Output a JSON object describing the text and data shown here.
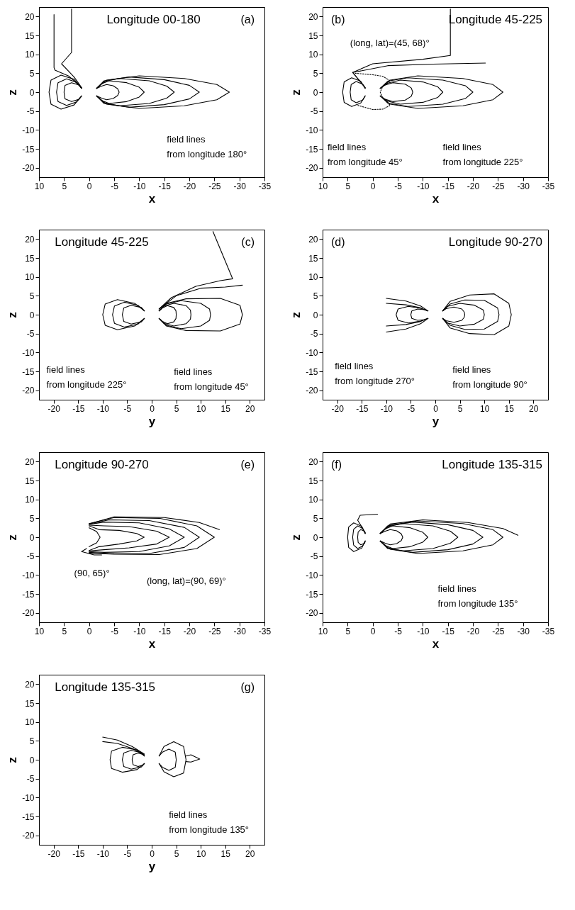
{
  "chart_data": [
    {
      "type": "line",
      "title": "Longitude 00-180",
      "subtitle": "(a)",
      "xlabel": "x",
      "ylabel": "z",
      "xlim": [
        10,
        -35
      ],
      "ylim": [
        -22.5,
        22.5
      ],
      "xticks": [
        10,
        5,
        0,
        -5,
        -10,
        -15,
        -20,
        -25,
        -30,
        -35
      ],
      "yticks": [
        -20,
        -15,
        -10,
        -5,
        0,
        5,
        10,
        15,
        20
      ],
      "annotations": [
        "field lines\nfrom longitude 180°"
      ],
      "series": [
        {
          "color": "#000000",
          "x": [
            1.5,
            3,
            5.5,
            3.5,
            3.5
          ],
          "values": [
            1.2,
            4,
            7.5,
            10.5,
            22
          ]
        },
        {
          "color": "#000000",
          "x": [
            1.5,
            4,
            6.8,
            7,
            7
          ],
          "values": [
            1.2,
            4.2,
            5.8,
            6.5,
            20.5
          ]
        },
        {
          "color": "#000000",
          "x": [
            1.5,
            2,
            3.5,
            4.8,
            5,
            4.8,
            3.5,
            2,
            1.5
          ],
          "values": [
            1,
            1.9,
            2.5,
            1.8,
            0,
            -1.8,
            -2.5,
            -1.9,
            -1
          ]
        },
        {
          "color": "#000000",
          "x": [
            1.5,
            2.5,
            4.5,
            6.2,
            6.5,
            6.2,
            4.5,
            2.5,
            1.5
          ],
          "values": [
            1,
            2.6,
            3.5,
            2.5,
            0,
            -2.5,
            -3.5,
            -2.6,
            -1
          ]
        },
        {
          "color": "#000000",
          "x": [
            1.5,
            3,
            5.6,
            7.6,
            8,
            7.6,
            5.6,
            3,
            1.5
          ],
          "values": [
            1,
            3.4,
            4.5,
            3.2,
            0,
            -3.2,
            -4.5,
            -3.4,
            -1
          ]
        },
        {
          "color": "#000000",
          "x": [
            -1.5,
            -2.5,
            -3.5,
            -4.8,
            -5.7,
            -6,
            -5.7,
            -4.8,
            -3.5,
            -2.5,
            -1.5
          ],
          "values": [
            1,
            1.6,
            2,
            1.7,
            0.9,
            0,
            -0.9,
            -1.7,
            -2,
            -1.6,
            -1
          ]
        },
        {
          "color": "#000000",
          "x": [
            -1.5,
            -2.5,
            -4,
            -7.5,
            -10,
            -11,
            -10,
            -7.5,
            -4,
            -2.5,
            -1.5
          ],
          "values": [
            1,
            2.2,
            3,
            2.5,
            1.3,
            0,
            -1.3,
            -2.5,
            -3,
            -2.2,
            -1
          ]
        },
        {
          "color": "#000000",
          "x": [
            -1.5,
            -3,
            -6,
            -12,
            -15.5,
            -17,
            -15.5,
            -12,
            -6,
            -3,
            -1.5
          ],
          "values": [
            1,
            2.8,
            3.6,
            3,
            1.6,
            0,
            -1.6,
            -3,
            -3.6,
            -2.8,
            -1
          ]
        },
        {
          "color": "#000000",
          "x": [
            -1.5,
            -3,
            -8,
            -15,
            -20,
            -22,
            -20,
            -15,
            -8,
            -3,
            -1.5
          ],
          "values": [
            1,
            3,
            4,
            3.3,
            1.8,
            0,
            -1.8,
            -3.3,
            -4,
            -3,
            -1
          ]
        },
        {
          "color": "#000000",
          "x": [
            -1.5,
            -3.5,
            -10,
            -19,
            -25.5,
            -28,
            -25.5,
            -19,
            -10,
            -3.5,
            -1.5
          ],
          "values": [
            1,
            3.2,
            4.3,
            3.6,
            2,
            0,
            -2,
            -3.6,
            -4.3,
            -3.2,
            -1
          ]
        }
      ]
    },
    {
      "type": "line",
      "title": "Longitude 45-225",
      "subtitle": "(b)",
      "xlabel": "x",
      "ylabel": "z",
      "xlim": [
        10,
        -35
      ],
      "ylim": [
        -22.5,
        22.5
      ],
      "xticks": [
        10,
        5,
        0,
        -5,
        -10,
        -15,
        -20,
        -25,
        -30,
        -35
      ],
      "yticks": [
        -20,
        -15,
        -10,
        -5,
        0,
        5,
        10,
        15,
        20
      ],
      "annotations": [
        "(long, lat)=(45, 68)°",
        "field lines\nfrom longitude 45°",
        "field lines\nfrom longitude 225°"
      ],
      "series": [
        {
          "color": "#000000",
          "x": [
            1.5,
            4,
            0,
            -10,
            -15.5,
            -15.5
          ],
          "values": [
            1.2,
            5.2,
            7.5,
            8.7,
            9.7,
            22
          ]
        },
        {
          "color": "#000000",
          "x": [
            1.5,
            4,
            -3,
            -12,
            -22.5
          ],
          "values": [
            1.2,
            5.2,
            7,
            7.4,
            7.7
          ]
        },
        {
          "color": "#000000",
          "line_style": "dotted",
          "x": [
            3.5,
            0,
            -2,
            -3.5,
            -2,
            -1.5,
            -2,
            -3.5,
            -2,
            0,
            3
          ],
          "values": [
            5,
            4.6,
            4.2,
            3,
            1.5,
            0,
            -1.5,
            -3.5,
            -4.5,
            -4.6,
            -3.5
          ]
        },
        {
          "color": "#000000",
          "x": [
            1.5,
            2,
            3.3,
            4.3,
            4.5,
            4.3,
            3.3,
            2,
            1.5
          ],
          "values": [
            1,
            2.1,
            2.8,
            2,
            0,
            -2,
            -2.8,
            -2.1,
            -1
          ]
        },
        {
          "color": "#000000",
          "x": [
            1.5,
            2.4,
            4.2,
            5.7,
            6,
            5.7,
            4.2,
            2.4,
            1.5
          ],
          "values": [
            1,
            2.9,
            3.8,
            2.7,
            0,
            -2.7,
            -3.8,
            -2.9,
            -1
          ]
        },
        {
          "color": "#000000",
          "x": [
            -1.5,
            -2.5,
            -4,
            -6.5,
            -7.7,
            -8,
            -7.7,
            -6.5,
            -4,
            -2.5,
            -1.5
          ],
          "values": [
            1,
            1.9,
            2.5,
            2.1,
            1.1,
            0,
            -1.1,
            -2.1,
            -2.5,
            -1.9,
            -1
          ]
        },
        {
          "color": "#000000",
          "x": [
            -1.5,
            -3,
            -5.5,
            -10,
            -13,
            -14,
            -13,
            -10,
            -5.5,
            -3,
            -1.5
          ],
          "values": [
            1,
            2.4,
            3.2,
            2.7,
            1.4,
            0,
            -1.4,
            -2.7,
            -3.2,
            -2.4,
            -1
          ]
        },
        {
          "color": "#000000",
          "x": [
            -1.5,
            -3,
            -7,
            -14,
            -18.5,
            -20,
            -18.5,
            -14,
            -7,
            -3,
            -1.5
          ],
          "values": [
            1,
            2.9,
            3.8,
            3.2,
            1.7,
            0,
            -1.7,
            -3.2,
            -3.8,
            -2.9,
            -1
          ]
        },
        {
          "color": "#000000",
          "x": [
            -1.5,
            -3.5,
            -9,
            -18,
            -24,
            -26,
            -24,
            -18,
            -9,
            -3.5,
            -1.5
          ],
          "values": [
            1,
            3.2,
            4.3,
            3.6,
            2,
            0,
            -2,
            -3.6,
            -4.3,
            -3.2,
            -1
          ]
        }
      ]
    },
    {
      "type": "line",
      "title": "Longitude 45-225",
      "subtitle": "(c)",
      "xlabel": "y",
      "ylabel": "z",
      "xlim": [
        -23,
        23
      ],
      "ylim": [
        -22.5,
        22.5
      ],
      "xticks": [
        -20,
        -15,
        -10,
        -5,
        0,
        5,
        10,
        15,
        20
      ],
      "yticks": [
        -20,
        -15,
        -10,
        -5,
        0,
        5,
        10,
        15,
        20
      ],
      "annotations": [
        "field lines\nfrom longitude 225°",
        "field lines\nfrom longitude 45°"
      ],
      "series": [
        {
          "color": "#000000",
          "x": [
            -1.5,
            -3.5,
            -7,
            -9.5,
            -10,
            -9.5,
            -7,
            -3.5,
            -1.5
          ],
          "values": [
            1,
            3,
            4,
            2.8,
            0,
            -2.8,
            -4,
            -3,
            -1
          ]
        },
        {
          "color": "#000000",
          "x": [
            -1.5,
            -2.8,
            -5.6,
            -7.6,
            -8,
            -7.6,
            -5.6,
            -2.8,
            -1.5
          ],
          "values": [
            1,
            2.5,
            3.3,
            2.3,
            0,
            -2.3,
            -3.3,
            -2.5,
            -1
          ]
        },
        {
          "color": "#000000",
          "x": [
            -1.5,
            -2.1,
            -4.2,
            -5.7,
            -6,
            -5.7,
            -4.2,
            -2.1,
            -1.5
          ],
          "values": [
            1,
            1.9,
            2.5,
            1.8,
            0,
            -1.8,
            -2.5,
            -1.9,
            -1
          ]
        },
        {
          "color": "#000000",
          "x": [
            1.8,
            2.2,
            3.2,
            4.5,
            4.95,
            5,
            4.95,
            4.5,
            3.2,
            2.2,
            1.8
          ],
          "values": [
            1.3,
            1.8,
            2.4,
            1.9,
            1,
            0,
            -1,
            -1.9,
            -2.4,
            -1.8,
            -1.3
          ]
        },
        {
          "color": "#000000",
          "x": [
            1.5,
            2.5,
            4.5,
            7,
            7.9,
            8,
            7.9,
            7,
            4.5,
            2.5,
            1.5
          ],
          "values": [
            1,
            2.3,
            3,
            2.4,
            1.2,
            0,
            -1.2,
            -2.4,
            -3,
            -2.3,
            -1
          ]
        },
        {
          "color": "#000000",
          "x": [
            1.5,
            3,
            6,
            10,
            11.8,
            12,
            11.8,
            10,
            6,
            3,
            1.5
          ],
          "values": [
            1,
            2.8,
            3.7,
            3,
            1.5,
            0,
            -1.5,
            -3,
            -3.7,
            -2.8,
            -1
          ]
        },
        {
          "color": "#000000",
          "x": [
            1.5,
            3,
            7,
            14,
            18,
            18.5,
            18,
            14,
            7,
            3,
            1.5
          ],
          "values": [
            1,
            3,
            4.2,
            4.3,
            2.5,
            0,
            -2.5,
            -4.3,
            -4.2,
            -3,
            -1
          ]
        },
        {
          "color": "#000000",
          "x": [
            1.5,
            4,
            9,
            14,
            16.5,
            12.5
          ],
          "values": [
            1.5,
            4.5,
            7.5,
            9,
            9.5,
            22
          ]
        },
        {
          "color": "#000000",
          "x": [
            1.5,
            5,
            10,
            15,
            18.5
          ],
          "values": [
            1.5,
            5,
            7,
            7.3,
            7.8
          ]
        }
      ]
    },
    {
      "type": "line",
      "title": "Longitude 90-270",
      "subtitle": "(d)",
      "xlabel": "y",
      "ylabel": "z",
      "xlim": [
        -23,
        23
      ],
      "ylim": [
        -22.5,
        22.5
      ],
      "xticks": [
        -20,
        -15,
        -10,
        -5,
        0,
        5,
        10,
        15,
        20
      ],
      "yticks": [
        -20,
        -15,
        -10,
        -5,
        0,
        5,
        10,
        15,
        20
      ],
      "annotations": [
        "field lines\nfrom longitude 270°",
        "field lines\nfrom longitude 90°"
      ],
      "series": [
        {
          "color": "#000000",
          "x": [
            -10,
            -6,
            -3,
            -1.5
          ],
          "values": [
            4.3,
            3.6,
            2.3,
            1
          ]
        },
        {
          "color": "#000000",
          "x": [
            -10,
            -6,
            -3,
            -1.5
          ],
          "values": [
            3,
            2.6,
            1.8,
            1
          ]
        },
        {
          "color": "#000000",
          "x": [
            -10,
            -6,
            -3,
            -1.5
          ],
          "values": [
            -4.6,
            -3.8,
            -2.4,
            -1
          ]
        },
        {
          "color": "#000000",
          "x": [
            -10,
            -6,
            -3,
            -1.5
          ],
          "values": [
            -3,
            -2.6,
            -1.8,
            -1
          ]
        },
        {
          "color": "#000000",
          "x": [
            -1.5,
            -3,
            -5.5,
            -7.6,
            -8,
            -7.6,
            -5.5,
            -3,
            -1.5
          ],
          "values": [
            1,
            1.7,
            2.2,
            1.5,
            0,
            -1.5,
            -2.2,
            -1.7,
            -1
          ]
        },
        {
          "color": "#000000",
          "x": [
            -1.5,
            -2.2,
            -3.6,
            -4.8,
            -5,
            -4.8,
            -3.6,
            -2.2,
            -1.5
          ],
          "values": [
            1,
            1.3,
            1.5,
            1,
            0,
            -1,
            -1.5,
            -1.3,
            -1
          ]
        },
        {
          "color": "#000000",
          "x": [
            1.5,
            2.2,
            3.8,
            5.4,
            5.9,
            6,
            5.9,
            5.4,
            3.8,
            2.2,
            1.5
          ],
          "values": [
            1,
            1.6,
            2,
            1.5,
            0.7,
            0,
            -0.7,
            -1.5,
            -2,
            -1.6,
            -1
          ]
        },
        {
          "color": "#000000",
          "x": [
            1.5,
            2.5,
            5,
            8,
            9.8,
            10,
            9.8,
            8,
            5,
            2.5,
            1.5
          ],
          "values": [
            1,
            2.2,
            3,
            2.5,
            1.2,
            0,
            -1.2,
            -2.5,
            -3,
            -2.2,
            -1
          ]
        },
        {
          "color": "#000000",
          "x": [
            1.5,
            3,
            6,
            10,
            12.7,
            13,
            12.7,
            10,
            6,
            3,
            1.5
          ],
          "values": [
            1,
            2.8,
            3.9,
            3.8,
            1.8,
            0,
            -1.8,
            -3.8,
            -3.9,
            -2.8,
            -1
          ]
        },
        {
          "color": "#000000",
          "x": [
            1.5,
            3,
            7,
            12,
            15,
            15.5,
            15,
            12,
            7,
            3,
            1.5
          ],
          "values": [
            1,
            3.5,
            5.2,
            5.5,
            3,
            0,
            -3,
            -5.3,
            -5,
            -3.5,
            -1
          ]
        }
      ]
    },
    {
      "type": "line",
      "title": "Longitude 90-270",
      "subtitle": "(e)",
      "xlabel": "x",
      "ylabel": "z",
      "xlim": [
        10,
        -35
      ],
      "ylim": [
        -22.5,
        22.5
      ],
      "xticks": [
        10,
        5,
        0,
        -5,
        -10,
        -15,
        -20,
        -25,
        -30,
        -35
      ],
      "yticks": [
        -20,
        -15,
        -10,
        -5,
        0,
        5,
        10,
        15,
        20
      ],
      "annotations": [
        "(90, 65)°",
        "(long, lat)=(90, 69)°"
      ],
      "series": [
        {
          "color": "#000000",
          "x": [
            0,
            -5,
            -15,
            -22,
            -26
          ],
          "values": [
            3.5,
            5.4,
            5.2,
            3.9,
            2
          ]
        },
        {
          "color": "#000000",
          "x": [
            0,
            -2,
            -6,
            -9.5,
            -11,
            -9.5,
            -6,
            -2,
            0
          ],
          "values": [
            3,
            2,
            1.8,
            1,
            0,
            -1,
            -1.8,
            -2.5,
            -3.5
          ]
        },
        {
          "color": "#000000",
          "x": [
            0,
            -3,
            -8,
            -13.5,
            -16,
            -13.5,
            -8,
            -3,
            0
          ],
          "values": [
            3.2,
            3,
            2.8,
            1.6,
            0,
            -1.8,
            -2.8,
            -3.3,
            -3.6
          ]
        },
        {
          "color": "#000000",
          "x": [
            0,
            -3,
            -10,
            -16,
            -19,
            -16,
            -10,
            -3,
            0
          ],
          "values": [
            3.4,
            4,
            3.8,
            2.2,
            0,
            -2.3,
            -3.8,
            -4,
            -3.8
          ]
        },
        {
          "color": "#000000",
          "x": [
            0,
            -4,
            -12,
            -19,
            -22,
            -19,
            -12,
            -4,
            0
          ],
          "values": [
            3.5,
            4.6,
            4.4,
            2.6,
            0,
            -2.7,
            -4.3,
            -4.3,
            -4
          ]
        },
        {
          "color": "#000000",
          "x": [
            0,
            -5,
            -14,
            -21.5,
            -25,
            -21.5,
            -14,
            -5,
            0
          ],
          "values": [
            3.6,
            5.2,
            5,
            3,
            0,
            -3,
            -4.6,
            -4.5,
            -4.2
          ]
        },
        {
          "color": "#000000",
          "x": [
            0,
            -1.5,
            -2.2,
            -1.5,
            0
          ],
          "values": [
            2.5,
            1.5,
            0,
            -1.5,
            -2.5
          ]
        },
        {
          "color": "#000000",
          "x": [
            0.5,
            1.5,
            -1,
            -2.5
          ],
          "values": [
            -3,
            -3.8,
            -4.7,
            -4.7
          ]
        }
      ]
    },
    {
      "type": "line",
      "title": "Longitude 135-315",
      "subtitle": "(f)",
      "xlabel": "x",
      "ylabel": "z",
      "xlim": [
        10,
        -35
      ],
      "ylim": [
        -22.5,
        22.5
      ],
      "xticks": [
        10,
        5,
        0,
        -5,
        -10,
        -15,
        -20,
        -25,
        -30,
        -35
      ],
      "yticks": [
        -20,
        -15,
        -10,
        -5,
        0,
        5,
        10,
        15,
        20
      ],
      "annotations": [
        "field lines\nfrom longitude 135°"
      ],
      "series": [
        {
          "color": "#000000",
          "x": [
            1.5,
            1.6,
            2.4,
            2.9,
            3,
            2.9,
            2.4,
            1.6,
            1.5
          ],
          "values": [
            1,
            1.6,
            2,
            1.4,
            0,
            -1.4,
            -2,
            -1.6,
            -1
          ]
        },
        {
          "color": "#000000",
          "x": [
            1.5,
            2,
            3,
            3.8,
            4,
            3.8,
            3,
            2,
            1.5
          ],
          "values": [
            1,
            2.3,
            3,
            2.1,
            0,
            -2.1,
            -3,
            -2.3,
            -1
          ]
        },
        {
          "color": "#000000",
          "x": [
            1.5,
            2.2,
            3.8,
            4.8,
            5,
            4.8,
            3.8,
            2.2,
            1.5
          ],
          "values": [
            1,
            2.9,
            3.8,
            2.7,
            0,
            -2.7,
            -3.8,
            -2.9,
            -1
          ]
        },
        {
          "color": "#000000",
          "x": [
            1.5,
            3,
            2.5,
            -1
          ],
          "values": [
            1.2,
            4.5,
            5.8,
            6.1
          ]
        },
        {
          "color": "#000000",
          "x": [
            -1.5,
            -2.5,
            -3.5,
            -4.8,
            -5.7,
            -6,
            -5.7,
            -4.8,
            -3.5,
            -2.5,
            -1.5
          ],
          "values": [
            1,
            1.6,
            2,
            1.7,
            0.9,
            0,
            -0.9,
            -1.7,
            -2,
            -1.6,
            -1
          ]
        },
        {
          "color": "#000000",
          "x": [
            -1.5,
            -2.5,
            -4,
            -7.5,
            -10,
            -11,
            -10,
            -7.5,
            -4,
            -2.5,
            -1.5
          ],
          "values": [
            1,
            2.2,
            3,
            2.5,
            1.3,
            0,
            -1.3,
            -2.5,
            -3,
            -2.2,
            -1
          ]
        },
        {
          "color": "#000000",
          "x": [
            -1.5,
            -3,
            -6,
            -12,
            -15.5,
            -17,
            -15.5,
            -12,
            -6,
            -3,
            -1.5
          ],
          "values": [
            1,
            2.8,
            3.6,
            3,
            1.6,
            0,
            -1.6,
            -3,
            -3.6,
            -2.8,
            -1
          ]
        },
        {
          "color": "#000000",
          "x": [
            -1.5,
            -3,
            -8,
            -15,
            -20,
            -22,
            -20,
            -15,
            -8,
            -3,
            -1.5
          ],
          "values": [
            1,
            3,
            4,
            3.3,
            1.8,
            0,
            -1.8,
            -3.3,
            -4,
            -3,
            -1
          ]
        },
        {
          "color": "#000000",
          "x": [
            -1.5,
            -3.5,
            -9,
            -18,
            -24,
            -26,
            -24,
            -18,
            -9,
            -3.5,
            -1.5
          ],
          "values": [
            1,
            3.2,
            4.3,
            3.6,
            2,
            0,
            -2,
            -3.6,
            -4.3,
            -3.2,
            -1
          ]
        },
        {
          "color": "#000000",
          "x": [
            -1.5,
            -3.5,
            -10,
            -19,
            -26,
            -29
          ],
          "values": [
            1,
            3.5,
            4.6,
            3.9,
            2.3,
            0.5
          ]
        }
      ]
    },
    {
      "type": "line",
      "title": "Longitude 135-315",
      "subtitle": "(g)",
      "xlabel": "y",
      "ylabel": "z",
      "xlim": [
        -23,
        23
      ],
      "ylim": [
        -22.5,
        22.5
      ],
      "xticks": [
        -20,
        -15,
        -10,
        -5,
        0,
        5,
        10,
        15,
        20
      ],
      "yticks": [
        -20,
        -15,
        -10,
        -5,
        0,
        5,
        10,
        15,
        20
      ],
      "annotations": [
        "field lines\nfrom longitude 135°"
      ],
      "series": [
        {
          "color": "#000000",
          "x": [
            -1.5,
            -3,
            -6,
            -8.2,
            -8.5,
            -8.2,
            -6,
            -3,
            -1.5
          ],
          "values": [
            1,
            2.6,
            3.3,
            2.3,
            0,
            -2.3,
            -3.3,
            -2.6,
            -1
          ]
        },
        {
          "color": "#000000",
          "x": [
            -1.5,
            -2.1,
            -4.2,
            -5.7,
            -6,
            -5.7,
            -4.2,
            -2.1,
            -1.5
          ],
          "values": [
            1,
            1.9,
            2.5,
            1.8,
            0,
            -1.8,
            -2.5,
            -1.9,
            -1
          ]
        },
        {
          "color": "#000000",
          "x": [
            -1.5,
            -1.8,
            -2.8,
            -3.8,
            -4,
            -3.8,
            -2.8,
            -1.8,
            -1.5
          ],
          "values": [
            1,
            1.4,
            1.8,
            1.3,
            0,
            -1.3,
            -1.8,
            -1.4,
            -1
          ]
        },
        {
          "color": "#000000",
          "x": [
            -1.5,
            -4,
            -7,
            -10
          ],
          "values": [
            1.5,
            3.5,
            5.2,
            6
          ]
        },
        {
          "color": "#000000",
          "x": [
            -1.5,
            -4,
            -7,
            -10
          ],
          "values": [
            1.3,
            3,
            4.3,
            4.8
          ]
        },
        {
          "color": "#000000",
          "x": [
            1.5,
            2.5,
            4.5,
            6.5,
            7,
            6.5,
            4.5,
            2.5,
            1.5
          ],
          "values": [
            1,
            3.5,
            4.8,
            3.5,
            0,
            -3.5,
            -4.5,
            -3.2,
            -1
          ]
        },
        {
          "color": "#000000",
          "x": [
            1.5,
            2.2,
            3.5,
            4.8,
            5,
            4.8,
            3.5,
            2.2,
            1.5
          ],
          "values": [
            1,
            2,
            2.8,
            2,
            0,
            -2,
            -2.8,
            -2,
            -1
          ]
        },
        {
          "color": "#000000",
          "x": [
            7,
            8,
            9.8,
            8,
            7
          ],
          "values": [
            1,
            1.3,
            0.2,
            -0.6,
            -0.5
          ]
        }
      ]
    }
  ]
}
